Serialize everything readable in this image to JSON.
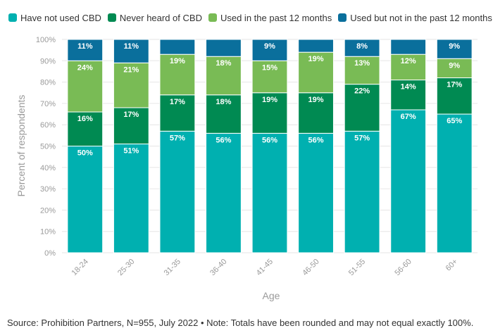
{
  "chart_data": {
    "type": "bar",
    "stacked": true,
    "categories": [
      "18-24",
      "25-30",
      "31-35",
      "36-40",
      "41-45",
      "46-50",
      "51-55",
      "56-60",
      "60+"
    ],
    "series": [
      {
        "name": "Have not used CBD",
        "color": "#00b0b0",
        "values": [
          50,
          51,
          57,
          56,
          56,
          56,
          57,
          67,
          65
        ],
        "labels": [
          "50%",
          "51%",
          "57%",
          "56%",
          "56%",
          "56%",
          "57%",
          "67%",
          "65%"
        ]
      },
      {
        "name": "Never heard of CBD",
        "color": "#008a52",
        "values": [
          16,
          17,
          17,
          18,
          19,
          19,
          22,
          14,
          17
        ],
        "labels": [
          "16%",
          "17%",
          "17%",
          "18%",
          "19%",
          "19%",
          "22%",
          "14%",
          "17%"
        ]
      },
      {
        "name": "Used in the past 12 months",
        "color": "#79bb55",
        "values": [
          24,
          21,
          19,
          18,
          15,
          19,
          13,
          12,
          9
        ],
        "labels": [
          "24%",
          "21%",
          "19%",
          "18%",
          "15%",
          "19%",
          "13%",
          "12%",
          "9%"
        ]
      },
      {
        "name": "Used but not in the past 12 months",
        "color": "#0a6f9c",
        "values": [
          11,
          11,
          7,
          7,
          9,
          6,
          8,
          7,
          9
        ],
        "labels": [
          "11%",
          "11%",
          "",
          "",
          "9%",
          "",
          "8%",
          "",
          "9%"
        ]
      }
    ],
    "xlabel": "Age",
    "ylabel": "Percent of respondents",
    "ylim": [
      0,
      100
    ],
    "yticks": [
      0,
      10,
      20,
      30,
      40,
      50,
      60,
      70,
      80,
      90,
      100
    ],
    "ytick_suffix": "%",
    "grid": true,
    "legend_position": "top"
  },
  "source_note": "Source: Prohibition Partners, N=955, July 2022 • Note: Totals have been rounded and may not equal exactly 100%."
}
